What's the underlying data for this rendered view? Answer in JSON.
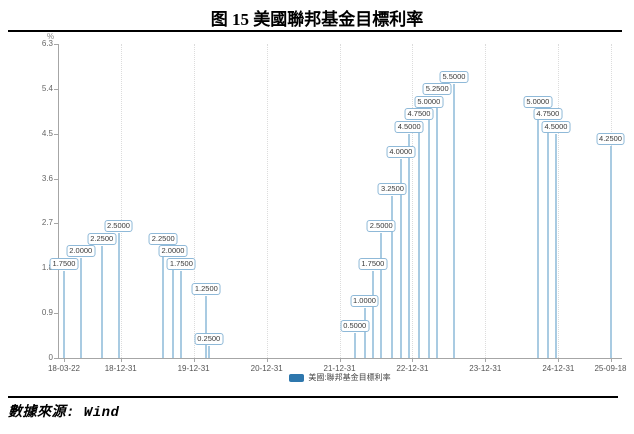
{
  "title": "图 15 美國聯邦基金目標利率",
  "source_text": "數據來源: Wind",
  "legend": {
    "label": "美國:聯邦基金目標利率",
    "swatch_color": "#2e77ad"
  },
  "colors": {
    "stem": "#a9cbe2",
    "label_box_border": "#8fb9d8",
    "axis": "#a6a6a6",
    "grid": "#dcdcdc"
  },
  "chart_data": {
    "type": "bar",
    "title": "图 15 美國聯邦基金目標利率",
    "series_name": "美國:聯邦基金目標利率",
    "ylabel": "%",
    "ylim": [
      0,
      6.3
    ],
    "y_ticks": [
      "0",
      "0.9",
      "1.8",
      "2.7",
      "3.6",
      "4.5",
      "5.4",
      "6.3"
    ],
    "x_ticks": [
      "18-03-22",
      "18-12-31",
      "19-12-31",
      "20-12-31",
      "21-12-31",
      "22-12-31",
      "23-12-31",
      "24-12-31",
      "25-09-18"
    ],
    "grid": "vertical-dotted",
    "legend_position": "bottom-center",
    "points": [
      {
        "date": "2018-03-22",
        "value": 1.75,
        "label": "1.7500"
      },
      {
        "date": "2018-06-14",
        "value": 2.0,
        "label": "2.0000"
      },
      {
        "date": "2018-09-27",
        "value": 2.25,
        "label": "2.2500"
      },
      {
        "date": "2018-12-20",
        "value": 2.5,
        "label": "2.5000"
      },
      {
        "date": "2019-08-01",
        "value": 2.25,
        "label": "2.2500"
      },
      {
        "date": "2019-09-19",
        "value": 2.0,
        "label": "2.0000"
      },
      {
        "date": "2019-10-31",
        "value": 1.75,
        "label": "1.7500"
      },
      {
        "date": "2020-03-04",
        "value": 1.25,
        "label": "1.2500"
      },
      {
        "date": "2020-03-16",
        "value": 0.25,
        "label": "0.2500"
      },
      {
        "date": "2022-03-17",
        "value": 0.5,
        "label": "0.5000"
      },
      {
        "date": "2022-05-05",
        "value": 1.0,
        "label": "1.0000"
      },
      {
        "date": "2022-06-16",
        "value": 1.75,
        "label": "1.7500"
      },
      {
        "date": "2022-07-28",
        "value": 2.5,
        "label": "2.5000"
      },
      {
        "date": "2022-09-22",
        "value": 3.25,
        "label": "3.2500"
      },
      {
        "date": "2022-11-03",
        "value": 4.0,
        "label": "4.0000"
      },
      {
        "date": "2022-12-15",
        "value": 4.5,
        "label": "4.5000"
      },
      {
        "date": "2023-02-02",
        "value": 4.75,
        "label": "4.7500"
      },
      {
        "date": "2023-03-23",
        "value": 5.0,
        "label": "5.0000"
      },
      {
        "date": "2023-05-04",
        "value": 5.25,
        "label": "5.2500"
      },
      {
        "date": "2023-07-27",
        "value": 5.5,
        "label": "5.5000"
      },
      {
        "date": "2024-09-19",
        "value": 5.0,
        "label": "5.0000"
      },
      {
        "date": "2024-11-08",
        "value": 4.75,
        "label": "4.7500"
      },
      {
        "date": "2024-12-19",
        "value": 4.5,
        "label": "4.5000"
      },
      {
        "date": "2025-09-18",
        "value": 4.25,
        "label": "4.2500"
      }
    ]
  }
}
